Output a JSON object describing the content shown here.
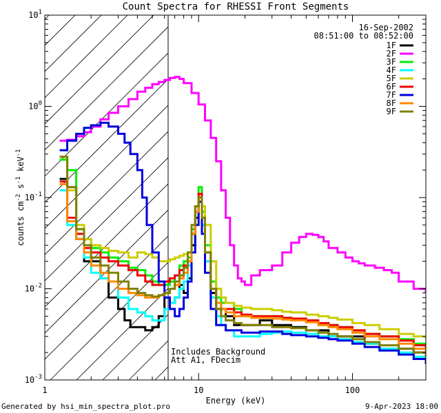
{
  "chart_data": {
    "type": "line",
    "title": "Count Spectra for RHESSI Front Segments",
    "xlabel": "Energy (keV)",
    "ylabel_prefix": "counts cm",
    "ylabel_parts": [
      "-2",
      " s",
      "-1",
      " keV",
      "-1"
    ],
    "xscale": "log",
    "yscale": "log",
    "xlim": [
      1,
      300
    ],
    "ylim": [
      0.001,
      10
    ],
    "x_tick_labels": [
      {
        "value": 1,
        "label": "1"
      },
      {
        "value": 10,
        "label": "10"
      },
      {
        "value": 100,
        "label": "100"
      }
    ],
    "y_tick_labels": [
      {
        "exp": -3,
        "base": "10",
        "sup": "-3"
      },
      {
        "exp": -2,
        "base": "10",
        "sup": "-2"
      },
      {
        "exp": -1,
        "base": "10",
        "sup": "-1"
      },
      {
        "exp": 0,
        "base": "10",
        "sup": "0"
      },
      {
        "exp": 1,
        "base": "10",
        "sup": "1"
      }
    ],
    "hatched_region_keV": [
      1,
      6
    ],
    "date": "16-Sep-2002",
    "time_range": "08:51:00 to 08:52:00",
    "annotations": [
      "Includes Background",
      "Att A1, FDecim"
    ],
    "series": [
      {
        "name": "1F",
        "color": "#000000",
        "x": [
          1.25,
          1.4,
          1.6,
          1.8,
          2.0,
          2.3,
          2.6,
          3.0,
          3.3,
          3.6,
          4.0,
          4.5,
          5.0,
          5.5,
          6.0,
          6.5,
          7.0,
          7.5,
          8.0,
          8.5,
          9.0,
          9.5,
          10.0,
          10.5,
          11.0,
          12,
          13,
          14,
          15,
          17,
          19,
          22,
          25,
          30,
          35,
          40,
          50,
          60,
          70,
          80,
          100,
          120,
          150,
          200,
          250,
          300
        ],
        "y": [
          0.16,
          0.13,
          0.035,
          0.02,
          0.02,
          0.013,
          0.008,
          0.006,
          0.0045,
          0.0038,
          0.0038,
          0.0035,
          0.0038,
          0.005,
          0.008,
          0.007,
          0.008,
          0.011,
          0.009,
          0.013,
          0.03,
          0.06,
          0.09,
          0.05,
          0.02,
          0.009,
          0.006,
          0.006,
          0.005,
          0.004,
          0.004,
          0.004,
          0.0045,
          0.004,
          0.004,
          0.0038,
          0.0035,
          0.0035,
          0.003,
          0.003,
          0.003,
          0.0025,
          0.0022,
          0.0022,
          0.002,
          0.0018
        ]
      },
      {
        "name": "2F",
        "color": "#ff00ff",
        "x": [
          1.25,
          1.4,
          1.6,
          1.8,
          2.0,
          2.3,
          2.6,
          3.0,
          3.5,
          4.0,
          4.5,
          5.0,
          5.5,
          6.0,
          6.5,
          7.0,
          7.5,
          8.0,
          9.0,
          10.0,
          11.0,
          12,
          13,
          14,
          15,
          16,
          17,
          18,
          19,
          20,
          22,
          25,
          30,
          35,
          40,
          45,
          50,
          55,
          60,
          65,
          70,
          80,
          90,
          100,
          110,
          120,
          140,
          160,
          180,
          200,
          250,
          300
        ],
        "y": [
          0.42,
          0.43,
          0.47,
          0.52,
          0.6,
          0.72,
          0.85,
          1.0,
          1.2,
          1.45,
          1.6,
          1.75,
          1.85,
          1.95,
          2.05,
          2.1,
          2.0,
          1.8,
          1.4,
          1.05,
          0.7,
          0.45,
          0.25,
          0.12,
          0.06,
          0.03,
          0.018,
          0.013,
          0.012,
          0.011,
          0.014,
          0.016,
          0.018,
          0.025,
          0.032,
          0.037,
          0.04,
          0.039,
          0.037,
          0.033,
          0.028,
          0.025,
          0.022,
          0.02,
          0.019,
          0.018,
          0.017,
          0.016,
          0.015,
          0.012,
          0.01,
          0.009
        ]
      },
      {
        "name": "3F",
        "color": "#00ee00",
        "x": [
          1.25,
          1.4,
          1.6,
          1.8,
          2.0,
          2.3,
          2.6,
          3.0,
          3.5,
          4.0,
          4.5,
          5.0,
          5.5,
          6.0,
          6.5,
          7.0,
          7.5,
          8.0,
          8.5,
          9.0,
          9.5,
          10.0,
          10.5,
          11.0,
          12,
          13,
          14,
          15,
          17,
          19,
          22,
          25,
          30,
          35,
          40,
          50,
          60,
          70,
          80,
          100,
          120,
          150,
          200,
          250,
          300
        ],
        "y": [
          0.26,
          0.2,
          0.045,
          0.035,
          0.028,
          0.025,
          0.022,
          0.02,
          0.017,
          0.016,
          0.014,
          0.012,
          0.011,
          0.011,
          0.012,
          0.014,
          0.018,
          0.02,
          0.022,
          0.045,
          0.08,
          0.13,
          0.07,
          0.03,
          0.012,
          0.008,
          0.007,
          0.007,
          0.006,
          0.005,
          0.005,
          0.005,
          0.005,
          0.0048,
          0.0046,
          0.0044,
          0.004,
          0.004,
          0.0038,
          0.0035,
          0.0032,
          0.003,
          0.0028,
          0.0025,
          0.0022
        ]
      },
      {
        "name": "4F",
        "color": "#00ffff",
        "x": [
          1.25,
          1.4,
          1.6,
          1.8,
          2.0,
          2.3,
          2.6,
          3.0,
          3.5,
          4.0,
          4.5,
          5.0,
          5.5,
          6.0,
          6.5,
          7.0,
          7.5,
          8.0,
          8.5,
          9.0,
          9.5,
          10.0,
          10.5,
          11.0,
          12,
          13,
          14,
          15,
          17,
          19,
          22,
          25,
          30,
          35,
          40,
          50,
          60,
          70,
          80,
          100,
          120,
          150,
          200,
          250,
          300
        ],
        "y": [
          0.12,
          0.05,
          0.035,
          0.022,
          0.015,
          0.013,
          0.012,
          0.008,
          0.006,
          0.0055,
          0.005,
          0.0045,
          0.0045,
          0.006,
          0.007,
          0.008,
          0.01,
          0.012,
          0.018,
          0.04,
          0.07,
          0.1,
          0.05,
          0.02,
          0.008,
          0.005,
          0.004,
          0.0035,
          0.003,
          0.003,
          0.003,
          0.0032,
          0.0033,
          0.0034,
          0.0033,
          0.0032,
          0.003,
          0.003,
          0.0028,
          0.0026,
          0.0025,
          0.0022,
          0.002,
          0.0018,
          0.0016
        ]
      },
      {
        "name": "5F",
        "color": "#cccc00",
        "x": [
          1.25,
          1.4,
          1.6,
          1.8,
          2.0,
          2.3,
          2.6,
          3.0,
          3.5,
          4.0,
          4.5,
          5.0,
          5.5,
          6.0,
          6.5,
          7.0,
          7.5,
          8.0,
          8.5,
          9.0,
          9.5,
          10.0,
          10.5,
          11.0,
          12,
          13,
          14,
          15,
          17,
          19,
          22,
          25,
          30,
          35,
          40,
          50,
          60,
          70,
          80,
          100,
          120,
          150,
          200,
          250,
          300
        ],
        "y": [
          0.28,
          0.12,
          0.05,
          0.035,
          0.03,
          0.028,
          0.026,
          0.025,
          0.022,
          0.025,
          0.024,
          0.022,
          0.02,
          0.02,
          0.021,
          0.022,
          0.023,
          0.024,
          0.025,
          0.04,
          0.07,
          0.1,
          0.08,
          0.05,
          0.02,
          0.01,
          0.008,
          0.007,
          0.0065,
          0.0062,
          0.006,
          0.006,
          0.0058,
          0.0056,
          0.0055,
          0.0052,
          0.005,
          0.0048,
          0.0046,
          0.0042,
          0.004,
          0.0036,
          0.0032,
          0.003,
          0.0028
        ]
      },
      {
        "name": "6F",
        "color": "#ee0000",
        "x": [
          1.25,
          1.4,
          1.6,
          1.8,
          2.0,
          2.3,
          2.6,
          3.0,
          3.5,
          4.0,
          4.5,
          5.0,
          5.5,
          6.0,
          6.5,
          7.0,
          7.5,
          8.0,
          8.5,
          9.0,
          9.5,
          10.0,
          10.5,
          11.0,
          12,
          13,
          14,
          15,
          17,
          19,
          22,
          25,
          30,
          35,
          40,
          50,
          60,
          70,
          80,
          100,
          120,
          150,
          200,
          250,
          300
        ],
        "y": [
          0.15,
          0.06,
          0.04,
          0.028,
          0.025,
          0.022,
          0.02,
          0.018,
          0.016,
          0.014,
          0.012,
          0.011,
          0.011,
          0.012,
          0.013,
          0.014,
          0.016,
          0.018,
          0.02,
          0.04,
          0.07,
          0.11,
          0.06,
          0.025,
          0.01,
          0.007,
          0.006,
          0.006,
          0.0055,
          0.0052,
          0.005,
          0.005,
          0.005,
          0.0048,
          0.0047,
          0.0045,
          0.0042,
          0.004,
          0.0038,
          0.0035,
          0.0032,
          0.003,
          0.0027,
          0.0024,
          0.002
        ]
      },
      {
        "name": "7F",
        "color": "#0000dd",
        "x": [
          1.25,
          1.4,
          1.6,
          1.8,
          2.0,
          2.3,
          2.6,
          3.0,
          3.3,
          3.6,
          4.0,
          4.3,
          4.6,
          5.0,
          5.5,
          6.0,
          6.5,
          7.0,
          7.5,
          8.0,
          8.5,
          9.0,
          9.5,
          10.0,
          10.5,
          11.0,
          12,
          13,
          14,
          15,
          17,
          19,
          22,
          25,
          30,
          35,
          40,
          50,
          60,
          70,
          80,
          100,
          120,
          150,
          200,
          250,
          300
        ],
        "y": [
          0.33,
          0.42,
          0.5,
          0.58,
          0.62,
          0.66,
          0.6,
          0.5,
          0.4,
          0.3,
          0.2,
          0.1,
          0.05,
          0.025,
          0.012,
          0.008,
          0.006,
          0.005,
          0.006,
          0.008,
          0.012,
          0.025,
          0.05,
          0.09,
          0.04,
          0.015,
          0.006,
          0.004,
          0.004,
          0.0035,
          0.0035,
          0.0033,
          0.0033,
          0.0034,
          0.0034,
          0.0032,
          0.0031,
          0.003,
          0.0029,
          0.0028,
          0.0027,
          0.0025,
          0.0023,
          0.0021,
          0.0019,
          0.0017,
          0.0015
        ]
      },
      {
        "name": "8F",
        "color": "#ff8800",
        "x": [
          1.25,
          1.4,
          1.6,
          1.8,
          2.0,
          2.3,
          2.6,
          3.0,
          3.5,
          4.0,
          4.5,
          5.0,
          5.5,
          6.0,
          6.5,
          7.0,
          7.5,
          8.0,
          8.5,
          9.0,
          9.5,
          10.0,
          10.5,
          11.0,
          12,
          13,
          14,
          15,
          17,
          19,
          22,
          25,
          30,
          35,
          40,
          50,
          60,
          70,
          80,
          100,
          120,
          150,
          200,
          250,
          300
        ],
        "y": [
          0.14,
          0.055,
          0.035,
          0.025,
          0.018,
          0.015,
          0.012,
          0.01,
          0.009,
          0.0085,
          0.008,
          0.008,
          0.0085,
          0.009,
          0.01,
          0.011,
          0.013,
          0.015,
          0.02,
          0.04,
          0.07,
          0.1,
          0.06,
          0.025,
          0.01,
          0.007,
          0.006,
          0.0055,
          0.005,
          0.005,
          0.0048,
          0.0048,
          0.0047,
          0.0046,
          0.0045,
          0.0043,
          0.004,
          0.0038,
          0.0036,
          0.0033,
          0.003,
          0.0028,
          0.0025,
          0.0022,
          0.002
        ]
      },
      {
        "name": "9F",
        "color": "#808000",
        "x": [
          1.25,
          1.4,
          1.6,
          1.8,
          2.0,
          2.3,
          2.6,
          3.0,
          3.5,
          4.0,
          4.5,
          5.0,
          5.5,
          6.0,
          6.5,
          7.0,
          7.5,
          8.0,
          8.5,
          9.0,
          9.5,
          10.0,
          10.5,
          11.0,
          12,
          13,
          14,
          15,
          17,
          19,
          22,
          25,
          30,
          35,
          40,
          50,
          60,
          70,
          80,
          100,
          120,
          150,
          200,
          250,
          300
        ],
        "y": [
          0.28,
          0.13,
          0.045,
          0.03,
          0.022,
          0.018,
          0.015,
          0.012,
          0.01,
          0.009,
          0.0085,
          0.0082,
          0.0085,
          0.009,
          0.01,
          0.012,
          0.014,
          0.017,
          0.025,
          0.05,
          0.08,
          0.1,
          0.06,
          0.025,
          0.01,
          0.006,
          0.005,
          0.0045,
          0.0042,
          0.004,
          0.004,
          0.004,
          0.0038,
          0.0038,
          0.0037,
          0.0035,
          0.0033,
          0.0032,
          0.003,
          0.0028,
          0.0026,
          0.0024,
          0.0022,
          0.002,
          0.0018
        ]
      }
    ]
  },
  "footer": {
    "generated_by": "Generated by hsi_min_spectra_plot.pro",
    "timestamp": "9-Apr-2023 18:00"
  }
}
